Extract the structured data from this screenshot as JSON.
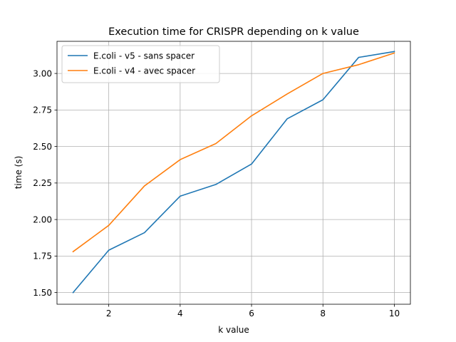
{
  "chart_data": {
    "type": "line",
    "title": "Execution time for CRISPR depending on k value",
    "xlabel": "k value",
    "ylabel": "time (s)",
    "xlim": [
      0.55,
      10.45
    ],
    "ylim": [
      1.42,
      3.22
    ],
    "x_ticks": [
      2,
      4,
      6,
      8,
      10
    ],
    "x_tick_labels": [
      "2",
      "4",
      "6",
      "8",
      "10"
    ],
    "y_ticks": [
      1.5,
      1.75,
      2.0,
      2.25,
      2.5,
      2.75,
      3.0
    ],
    "y_tick_labels": [
      "1.50",
      "1.75",
      "2.00",
      "2.25",
      "2.50",
      "2.75",
      "3.00"
    ],
    "grid": true,
    "legend_position": "upper-left",
    "x": [
      1,
      2,
      3,
      4,
      5,
      6,
      7,
      8,
      9,
      10
    ],
    "series": [
      {
        "name": "E.coli - v5 - sans spacer",
        "color": "#1f77b4",
        "values": [
          1.5,
          1.79,
          1.91,
          2.16,
          2.24,
          2.38,
          2.69,
          2.82,
          3.11,
          3.15
        ]
      },
      {
        "name": "E.coli - v4 - avec spacer",
        "color": "#ff7f0e",
        "values": [
          1.78,
          1.96,
          2.23,
          2.41,
          2.52,
          2.71,
          2.86,
          3.0,
          3.06,
          3.14
        ]
      }
    ]
  }
}
